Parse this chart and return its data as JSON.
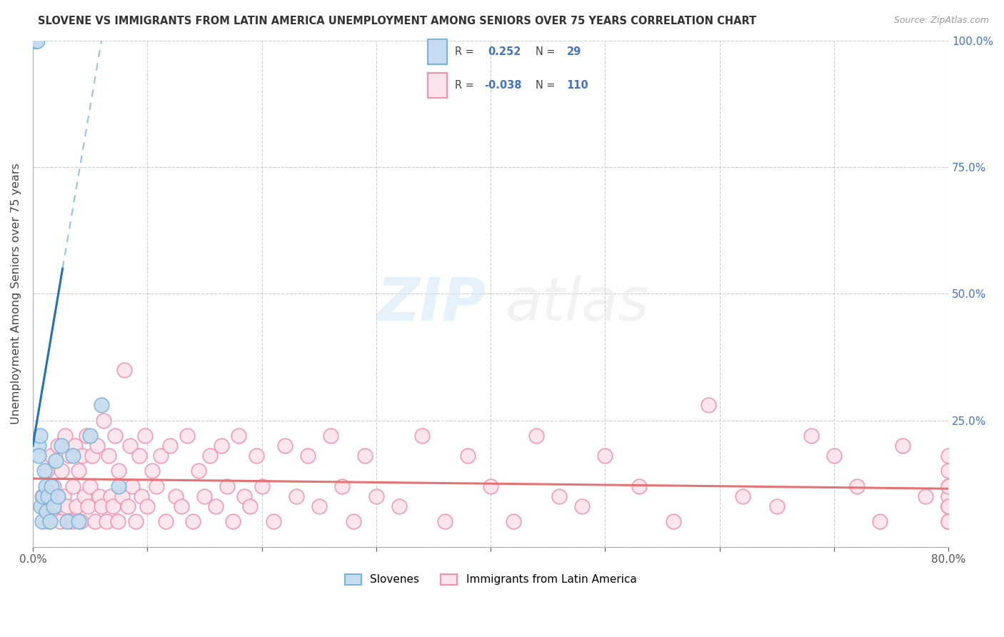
{
  "title": "SLOVENE VS IMMIGRANTS FROM LATIN AMERICA UNEMPLOYMENT AMONG SENIORS OVER 75 YEARS CORRELATION CHART",
  "source": "Source: ZipAtlas.com",
  "ylabel": "Unemployment Among Seniors over 75 years",
  "xlim": [
    0.0,
    0.8
  ],
  "ylim": [
    0.0,
    1.0
  ],
  "slovene_R": 0.252,
  "slovene_N": 29,
  "latin_R": -0.038,
  "latin_N": 110,
  "slovene_color": "#7ab3d9",
  "slovene_fill": "#c6dbef",
  "latin_color": "#f48fb1",
  "latin_fill": "#fce4ec",
  "trend_slovene_color": "#2171b5",
  "trend_latin_color": "#e57373",
  "slovene_x": [
    0.001,
    0.002,
    0.002,
    0.003,
    0.003,
    0.003,
    0.004,
    0.005,
    0.005,
    0.006,
    0.007,
    0.008,
    0.009,
    0.01,
    0.011,
    0.012,
    0.013,
    0.015,
    0.016,
    0.018,
    0.02,
    0.022,
    0.025,
    0.03,
    0.035,
    0.04,
    0.05,
    0.06,
    0.075
  ],
  "slovene_y": [
    1.0,
    1.0,
    1.0,
    1.0,
    1.0,
    1.0,
    1.0,
    0.2,
    0.18,
    0.22,
    0.08,
    0.05,
    0.1,
    0.15,
    0.12,
    0.07,
    0.1,
    0.05,
    0.12,
    0.08,
    0.17,
    0.1,
    0.2,
    0.05,
    0.18,
    0.05,
    0.22,
    0.28,
    0.12
  ],
  "latin_x": [
    0.008,
    0.01,
    0.012,
    0.014,
    0.016,
    0.018,
    0.02,
    0.022,
    0.024,
    0.025,
    0.027,
    0.028,
    0.03,
    0.032,
    0.034,
    0.035,
    0.037,
    0.038,
    0.04,
    0.042,
    0.043,
    0.045,
    0.047,
    0.048,
    0.05,
    0.052,
    0.054,
    0.056,
    0.058,
    0.06,
    0.062,
    0.064,
    0.066,
    0.068,
    0.07,
    0.072,
    0.074,
    0.075,
    0.078,
    0.08,
    0.083,
    0.085,
    0.087,
    0.09,
    0.093,
    0.095,
    0.098,
    0.1,
    0.104,
    0.108,
    0.112,
    0.116,
    0.12,
    0.125,
    0.13,
    0.135,
    0.14,
    0.145,
    0.15,
    0.155,
    0.16,
    0.165,
    0.17,
    0.175,
    0.18,
    0.185,
    0.19,
    0.195,
    0.2,
    0.21,
    0.22,
    0.23,
    0.24,
    0.25,
    0.26,
    0.27,
    0.28,
    0.29,
    0.3,
    0.32,
    0.34,
    0.36,
    0.38,
    0.4,
    0.42,
    0.44,
    0.46,
    0.48,
    0.5,
    0.53,
    0.56,
    0.59,
    0.62,
    0.65,
    0.68,
    0.7,
    0.72,
    0.74,
    0.76,
    0.78,
    0.8,
    0.8,
    0.8,
    0.8,
    0.8,
    0.8,
    0.8,
    0.8,
    0.8,
    0.8
  ],
  "latin_y": [
    0.1,
    0.08,
    0.15,
    0.05,
    0.18,
    0.12,
    0.08,
    0.2,
    0.05,
    0.15,
    0.1,
    0.22,
    0.08,
    0.18,
    0.05,
    0.12,
    0.2,
    0.08,
    0.15,
    0.05,
    0.18,
    0.1,
    0.22,
    0.08,
    0.12,
    0.18,
    0.05,
    0.2,
    0.1,
    0.08,
    0.25,
    0.05,
    0.18,
    0.1,
    0.08,
    0.22,
    0.05,
    0.15,
    0.1,
    0.35,
    0.08,
    0.2,
    0.12,
    0.05,
    0.18,
    0.1,
    0.22,
    0.08,
    0.15,
    0.12,
    0.18,
    0.05,
    0.2,
    0.1,
    0.08,
    0.22,
    0.05,
    0.15,
    0.1,
    0.18,
    0.08,
    0.2,
    0.12,
    0.05,
    0.22,
    0.1,
    0.08,
    0.18,
    0.12,
    0.05,
    0.2,
    0.1,
    0.18,
    0.08,
    0.22,
    0.12,
    0.05,
    0.18,
    0.1,
    0.08,
    0.22,
    0.05,
    0.18,
    0.12,
    0.05,
    0.22,
    0.1,
    0.08,
    0.18,
    0.12,
    0.05,
    0.28,
    0.1,
    0.08,
    0.22,
    0.18,
    0.12,
    0.05,
    0.2,
    0.1,
    0.08,
    0.18,
    0.12,
    0.05,
    0.08,
    0.1,
    0.05,
    0.12,
    0.15,
    0.08
  ],
  "trend_line_slovene_x0": 0.0,
  "trend_line_slovene_y0": 0.2,
  "trend_line_slovene_x1": 0.026,
  "trend_line_slovene_y1": 0.55,
  "trend_line_slovene_dash_x0": 0.026,
  "trend_line_slovene_dash_y0": 0.55,
  "trend_line_slovene_dash_x1": 0.06,
  "trend_line_slovene_dash_y1": 1.0,
  "trend_line_latin_x0": 0.0,
  "trend_line_latin_y0": 0.135,
  "trend_line_latin_x1": 0.8,
  "trend_line_latin_y1": 0.115
}
